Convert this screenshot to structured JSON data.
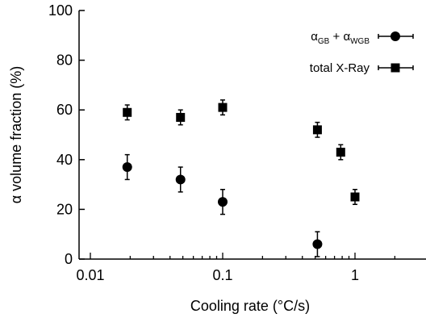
{
  "chart_data": {
    "type": "scatter",
    "xlabel": "Cooling rate (°C/s)",
    "ylabel": "α volume fraction (%)",
    "xscale": "log",
    "xlim": [
      0.01,
      2
    ],
    "ylim": [
      0,
      100
    ],
    "xticks": [
      {
        "value": 0.01,
        "label": "0.01"
      },
      {
        "value": 0.1,
        "label": "0.1"
      },
      {
        "value": 1,
        "label": "1"
      }
    ],
    "yticks": [
      {
        "value": 0,
        "label": "0"
      },
      {
        "value": 20,
        "label": "20"
      },
      {
        "value": 40,
        "label": "40"
      },
      {
        "value": 60,
        "label": "60"
      },
      {
        "value": 80,
        "label": "80"
      },
      {
        "value": 100,
        "label": "100"
      }
    ],
    "legend_position": "top-right",
    "series": [
      {
        "legend": {
          "base1": "α",
          "sub1": "GB",
          "plus": " + ",
          "base2": "α",
          "sub2": "WGB"
        },
        "marker": "circle",
        "points": [
          {
            "x": 0.019,
            "y": 37,
            "err": 5
          },
          {
            "x": 0.048,
            "y": 32,
            "err": 5
          },
          {
            "x": 0.1,
            "y": 23,
            "err": 5
          },
          {
            "x": 0.52,
            "y": 6,
            "err": 5
          }
        ]
      },
      {
        "name": "total X-Ray",
        "marker": "square",
        "points": [
          {
            "x": 0.019,
            "y": 59,
            "err": 3
          },
          {
            "x": 0.048,
            "y": 57,
            "err": 3
          },
          {
            "x": 0.1,
            "y": 61,
            "err": 3
          },
          {
            "x": 0.52,
            "y": 52,
            "err": 3
          },
          {
            "x": 0.78,
            "y": 43,
            "err": 3
          },
          {
            "x": 1.0,
            "y": 25,
            "err": 3
          }
        ]
      }
    ]
  }
}
